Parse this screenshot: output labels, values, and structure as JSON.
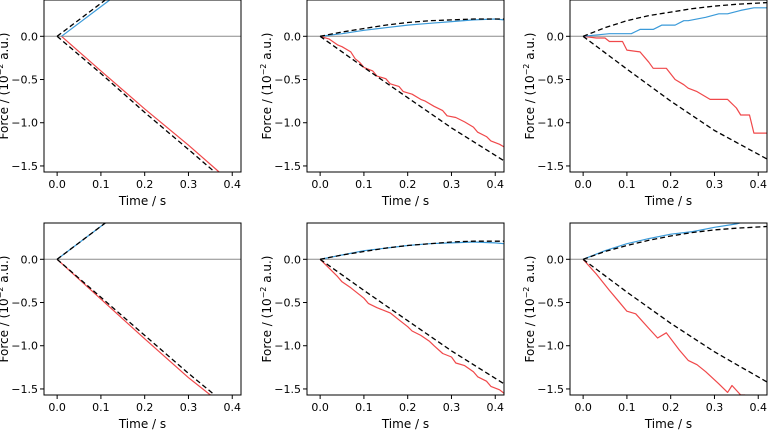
{
  "figure": {
    "xlabel": "Time / s",
    "ylabel_pre": "Force / (10",
    "ylabel_exp": "−2",
    "ylabel_post": " a.u.)"
  },
  "colors": {
    "red": "#f0484a",
    "blue": "#3a9ad9",
    "ref": "#000000",
    "zero": "#8c8c8c"
  },
  "chart_data": [
    {
      "type": "line",
      "panel": "row1-col1",
      "xlim": [
        -0.03,
        0.42
      ],
      "ylim": [
        -1.57,
        0.42
      ],
      "xticks": [
        0.0,
        0.1,
        0.2,
        0.3,
        0.4
      ],
      "xtick_labels": [
        "0.0",
        "0.1",
        "0.2",
        "0.3",
        "0.4"
      ],
      "yticks": [
        -1.5,
        -1.0,
        -0.5,
        0.0
      ],
      "ytick_labels": [
        "−1.5",
        "−1.0",
        "−0.5",
        "0.0"
      ],
      "xlabel": "Time / s",
      "ylabel": "Force / (10−2 a.u.)",
      "series": [
        {
          "color": "red",
          "style": "solid",
          "x": [
            0.01,
            0.1,
            0.2,
            0.3,
            0.37
          ],
          "y": [
            0.0,
            -0.4,
            -0.84,
            -1.26,
            -1.57
          ]
        },
        {
          "color": "blue",
          "style": "solid",
          "x": [
            0.01,
            0.12
          ],
          "y": [
            0.0,
            0.42
          ]
        },
        {
          "color": "ref",
          "style": "dashed",
          "x": [
            0.0,
            0.1,
            0.2,
            0.3,
            0.36
          ],
          "y": [
            0.0,
            -0.43,
            -0.88,
            -1.31,
            -1.57
          ]
        },
        {
          "color": "ref",
          "style": "dashed",
          "x": [
            0.0,
            0.11
          ],
          "y": [
            0.0,
            0.42
          ]
        }
      ]
    },
    {
      "type": "line",
      "panel": "row1-col2",
      "xlim": [
        -0.03,
        0.42
      ],
      "ylim": [
        -1.57,
        0.42
      ],
      "xticks": [
        0.0,
        0.1,
        0.2,
        0.3,
        0.4
      ],
      "xtick_labels": [
        "0.0",
        "0.1",
        "0.2",
        "0.3",
        "0.4"
      ],
      "yticks": [
        -1.5,
        -1.0,
        -0.5,
        0.0
      ],
      "ytick_labels": [
        "−1.5",
        "−1.0",
        "−0.5",
        "0.0"
      ],
      "xlabel": "Time / s",
      "ylabel": "Force / (10−2 a.u.)",
      "series": [
        {
          "color": "red",
          "style": "solid",
          "x": [
            0.0,
            0.02,
            0.04,
            0.05,
            0.07,
            0.08,
            0.09,
            0.1,
            0.12,
            0.13,
            0.15,
            0.16,
            0.18,
            0.19,
            0.21,
            0.23,
            0.24,
            0.26,
            0.28,
            0.29,
            0.31,
            0.33,
            0.35,
            0.36,
            0.38,
            0.39,
            0.41,
            0.42
          ],
          "y": [
            0.0,
            -0.03,
            -0.1,
            -0.12,
            -0.18,
            -0.26,
            -0.3,
            -0.36,
            -0.4,
            -0.46,
            -0.49,
            -0.55,
            -0.58,
            -0.64,
            -0.67,
            -0.73,
            -0.75,
            -0.81,
            -0.86,
            -0.92,
            -0.94,
            -0.99,
            -1.05,
            -1.11,
            -1.16,
            -1.21,
            -1.25,
            -1.28
          ]
        },
        {
          "color": "blue",
          "style": "solid",
          "x": [
            0.0,
            0.05,
            0.1,
            0.15,
            0.2,
            0.25,
            0.3,
            0.35,
            0.4,
            0.42
          ],
          "y": [
            0.0,
            0.03,
            0.07,
            0.1,
            0.13,
            0.15,
            0.17,
            0.19,
            0.2,
            0.19
          ]
        },
        {
          "color": "ref",
          "style": "dashed",
          "x": [
            0.0,
            0.1,
            0.2,
            0.3,
            0.42
          ],
          "y": [
            0.0,
            -0.36,
            -0.71,
            -1.06,
            -1.44
          ]
        },
        {
          "color": "ref",
          "style": "dashed",
          "x": [
            0.0,
            0.05,
            0.1,
            0.15,
            0.2,
            0.25,
            0.3,
            0.35,
            0.4,
            0.42
          ],
          "y": [
            0.0,
            0.05,
            0.09,
            0.13,
            0.16,
            0.18,
            0.19,
            0.2,
            0.2,
            0.2
          ]
        }
      ]
    },
    {
      "type": "line",
      "panel": "row1-col3",
      "xlim": [
        -0.03,
        0.42
      ],
      "ylim": [
        -1.57,
        0.42
      ],
      "xticks": [
        0.0,
        0.1,
        0.2,
        0.3,
        0.4
      ],
      "xtick_labels": [
        "0.0",
        "0.1",
        "0.2",
        "0.3",
        "0.4"
      ],
      "yticks": [
        -1.5,
        -1.0,
        -0.5,
        0.0
      ],
      "ytick_labels": [
        "−1.5",
        "−1.0",
        "−0.5",
        "0.0"
      ],
      "xlabel": "Time / s",
      "ylabel": "Force / (10−2 a.u.)",
      "series": [
        {
          "color": "red",
          "style": "solid",
          "x": [
            0.0,
            0.03,
            0.05,
            0.06,
            0.09,
            0.1,
            0.13,
            0.15,
            0.16,
            0.19,
            0.21,
            0.23,
            0.24,
            0.26,
            0.29,
            0.31,
            0.33,
            0.35,
            0.36,
            0.38,
            0.39,
            0.42
          ],
          "y": [
            0.0,
            -0.02,
            -0.02,
            -0.06,
            -0.06,
            -0.16,
            -0.18,
            -0.3,
            -0.37,
            -0.37,
            -0.5,
            -0.56,
            -0.6,
            -0.64,
            -0.73,
            -0.73,
            -0.73,
            -0.83,
            -0.91,
            -0.91,
            -1.12,
            -1.12
          ]
        },
        {
          "color": "blue",
          "style": "solid",
          "x": [
            0.0,
            0.06,
            0.11,
            0.13,
            0.16,
            0.18,
            0.21,
            0.23,
            0.24,
            0.28,
            0.31,
            0.33,
            0.36,
            0.39,
            0.42
          ],
          "y": [
            0.0,
            0.03,
            0.03,
            0.08,
            0.08,
            0.13,
            0.13,
            0.18,
            0.18,
            0.22,
            0.26,
            0.26,
            0.3,
            0.33,
            0.33
          ]
        },
        {
          "color": "ref",
          "style": "dashed",
          "x": [
            0.0,
            0.1,
            0.2,
            0.3,
            0.42
          ],
          "y": [
            0.0,
            -0.38,
            -0.75,
            -1.09,
            -1.42
          ]
        },
        {
          "color": "ref",
          "style": "dashed",
          "x": [
            0.0,
            0.05,
            0.1,
            0.15,
            0.2,
            0.25,
            0.3,
            0.35,
            0.42
          ],
          "y": [
            0.0,
            0.1,
            0.18,
            0.24,
            0.28,
            0.32,
            0.35,
            0.37,
            0.39
          ]
        }
      ]
    },
    {
      "type": "line",
      "panel": "row2-col1",
      "xlim": [
        -0.03,
        0.42
      ],
      "ylim": [
        -1.57,
        0.42
      ],
      "xticks": [
        0.0,
        0.1,
        0.2,
        0.3,
        0.4
      ],
      "xtick_labels": [
        "0.0",
        "0.1",
        "0.2",
        "0.3",
        "0.4"
      ],
      "yticks": [
        -1.5,
        -1.0,
        -0.5,
        0.0
      ],
      "ytick_labels": [
        "−1.5",
        "−1.0",
        "−0.5",
        "0.0"
      ],
      "xlabel": "Time / s",
      "ylabel": "Force / (10−2 a.u.)",
      "series": [
        {
          "color": "red",
          "style": "solid",
          "x": [
            0.0,
            0.1,
            0.2,
            0.3,
            0.35
          ],
          "y": [
            0.0,
            -0.46,
            -0.92,
            -1.37,
            -1.57
          ]
        },
        {
          "color": "blue",
          "style": "solid",
          "x": [
            0.0,
            0.11
          ],
          "y": [
            0.0,
            0.42
          ]
        },
        {
          "color": "ref",
          "style": "dashed",
          "x": [
            0.0,
            0.1,
            0.2,
            0.3,
            0.36
          ],
          "y": [
            0.0,
            -0.44,
            -0.88,
            -1.32,
            -1.57
          ]
        },
        {
          "color": "ref",
          "style": "dashed",
          "x": [
            0.0,
            0.11
          ],
          "y": [
            0.0,
            0.42
          ]
        }
      ]
    },
    {
      "type": "line",
      "panel": "row2-col2",
      "xlim": [
        -0.03,
        0.42
      ],
      "ylim": [
        -1.57,
        0.42
      ],
      "xticks": [
        0.0,
        0.1,
        0.2,
        0.3,
        0.4
      ],
      "xtick_labels": [
        "0.0",
        "0.1",
        "0.2",
        "0.3",
        "0.4"
      ],
      "yticks": [
        -1.5,
        -1.0,
        -0.5,
        0.0
      ],
      "ytick_labels": [
        "−1.5",
        "−1.0",
        "−0.5",
        "0.0"
      ],
      "xlabel": "Time / s",
      "ylabel": "Force / (10−2 a.u.)",
      "series": [
        {
          "color": "red",
          "style": "solid",
          "x": [
            0.0,
            0.02,
            0.04,
            0.05,
            0.07,
            0.08,
            0.1,
            0.11,
            0.13,
            0.15,
            0.16,
            0.18,
            0.2,
            0.21,
            0.23,
            0.25,
            0.26,
            0.28,
            0.3,
            0.31,
            0.33,
            0.35,
            0.36,
            0.38,
            0.39,
            0.41,
            0.42
          ],
          "y": [
            0.0,
            -0.1,
            -0.2,
            -0.26,
            -0.33,
            -0.37,
            -0.45,
            -0.51,
            -0.56,
            -0.6,
            -0.62,
            -0.7,
            -0.78,
            -0.83,
            -0.88,
            -0.95,
            -1.0,
            -1.09,
            -1.13,
            -1.2,
            -1.23,
            -1.3,
            -1.36,
            -1.41,
            -1.47,
            -1.51,
            -1.55
          ]
        },
        {
          "color": "blue",
          "style": "solid",
          "x": [
            0.0,
            0.05,
            0.1,
            0.15,
            0.2,
            0.25,
            0.3,
            0.35,
            0.4,
            0.42
          ],
          "y": [
            0.0,
            0.05,
            0.1,
            0.13,
            0.16,
            0.18,
            0.19,
            0.2,
            0.19,
            0.18
          ]
        },
        {
          "color": "ref",
          "style": "dashed",
          "x": [
            0.0,
            0.1,
            0.2,
            0.3,
            0.42
          ],
          "y": [
            0.0,
            -0.36,
            -0.71,
            -1.06,
            -1.44
          ]
        },
        {
          "color": "ref",
          "style": "dashed",
          "x": [
            0.0,
            0.05,
            0.1,
            0.15,
            0.2,
            0.25,
            0.3,
            0.35,
            0.4,
            0.42
          ],
          "y": [
            0.0,
            0.05,
            0.09,
            0.13,
            0.16,
            0.18,
            0.2,
            0.21,
            0.21,
            0.21
          ]
        }
      ]
    },
    {
      "type": "line",
      "panel": "row2-col3",
      "xlim": [
        -0.03,
        0.42
      ],
      "ylim": [
        -1.57,
        0.42
      ],
      "xticks": [
        0.0,
        0.1,
        0.2,
        0.3,
        0.4
      ],
      "xtick_labels": [
        "0.0",
        "0.1",
        "0.2",
        "0.3",
        "0.4"
      ],
      "yticks": [
        -1.5,
        -1.0,
        -0.5,
        0.0
      ],
      "ytick_labels": [
        "−1.5",
        "−1.0",
        "−0.5",
        "0.0"
      ],
      "xlabel": "Time / s",
      "ylabel": "Force / (10−2 a.u.)",
      "series": [
        {
          "color": "red",
          "style": "solid",
          "x": [
            0.0,
            0.03,
            0.06,
            0.08,
            0.1,
            0.12,
            0.15,
            0.17,
            0.19,
            0.22,
            0.24,
            0.26,
            0.28,
            0.31,
            0.33,
            0.34,
            0.36,
            0.37
          ],
          "y": [
            0.0,
            -0.17,
            -0.36,
            -0.48,
            -0.6,
            -0.63,
            -0.8,
            -0.91,
            -0.85,
            -1.05,
            -1.17,
            -1.22,
            -1.3,
            -1.44,
            -1.54,
            -1.46,
            -1.57,
            -1.57
          ]
        },
        {
          "color": "blue",
          "style": "solid",
          "x": [
            0.0,
            0.05,
            0.1,
            0.15,
            0.2,
            0.25,
            0.3,
            0.35,
            0.38,
            0.4,
            0.42
          ],
          "y": [
            0.0,
            0.1,
            0.18,
            0.24,
            0.29,
            0.32,
            0.37,
            0.41,
            0.45,
            0.44,
            0.42
          ]
        },
        {
          "color": "ref",
          "style": "dashed",
          "x": [
            0.0,
            0.1,
            0.2,
            0.3,
            0.42
          ],
          "y": [
            0.0,
            -0.38,
            -0.74,
            -1.07,
            -1.42
          ]
        },
        {
          "color": "ref",
          "style": "dashed",
          "x": [
            0.0,
            0.05,
            0.1,
            0.15,
            0.2,
            0.25,
            0.3,
            0.35,
            0.42
          ],
          "y": [
            0.0,
            0.09,
            0.16,
            0.22,
            0.27,
            0.31,
            0.34,
            0.36,
            0.38
          ]
        }
      ]
    }
  ]
}
